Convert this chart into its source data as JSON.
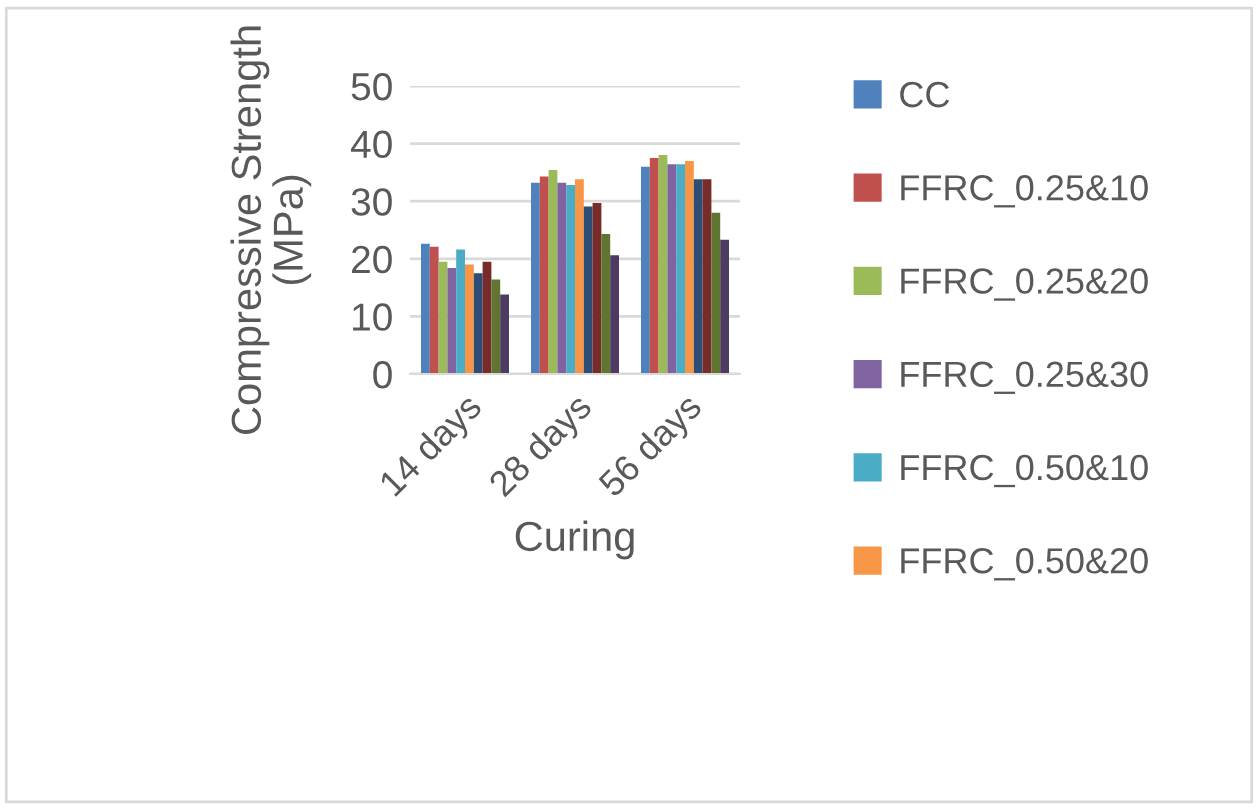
{
  "chart_data": {
    "type": "bar",
    "xlabel": "Curing",
    "ylabel": "Compressive Strength (MPa)",
    "categories": [
      "14 days",
      "28 days",
      "56 days"
    ],
    "ylim": [
      0,
      50
    ],
    "yticks": [
      0,
      10,
      20,
      30,
      40,
      50
    ],
    "grid": "y",
    "legend": "right",
    "series": [
      {
        "name": "CC",
        "color": "#4f81bd",
        "values": [
          22.6,
          33.2,
          36.0
        ]
      },
      {
        "name": "FFRC_0.25&10",
        "color": "#c0504d",
        "values": [
          22.1,
          34.3,
          37.5
        ]
      },
      {
        "name": "FFRC_0.25&20",
        "color": "#9bbb59",
        "values": [
          19.5,
          35.4,
          38.0
        ]
      },
      {
        "name": "FFRC_0.25&30",
        "color": "#8064a2",
        "values": [
          18.4,
          33.2,
          36.4
        ]
      },
      {
        "name": "FFRC_0.50&10",
        "color": "#4bacc6",
        "values": [
          21.6,
          32.8,
          36.4
        ]
      },
      {
        "name": "FFRC_0.50&20",
        "color": "#f79646",
        "values": [
          19.0,
          33.8,
          37.0
        ]
      },
      {
        "color": "#2c4d75",
        "values": [
          17.5,
          29.1,
          33.8
        ]
      },
      {
        "color": "#772c2a",
        "values": [
          19.5,
          29.7,
          33.8
        ]
      },
      {
        "color": "#5f7530",
        "values": [
          16.4,
          24.3,
          28.0
        ]
      },
      {
        "color": "#4d3b62",
        "values": [
          13.8,
          20.6,
          23.3
        ]
      }
    ]
  }
}
